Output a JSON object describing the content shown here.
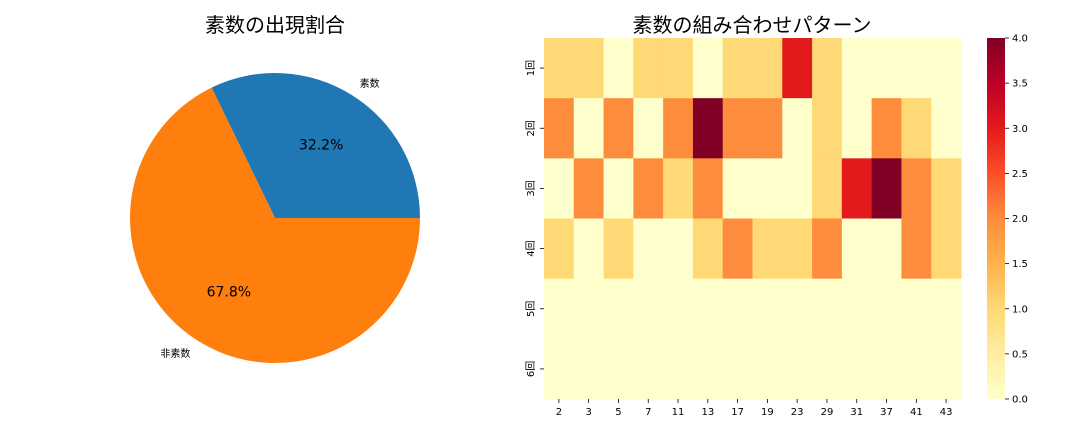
{
  "chart_data": [
    {
      "type": "pie",
      "title": "素数の出現割合",
      "labels": [
        "素数",
        "非素数"
      ],
      "values": [
        32.2,
        67.8
      ],
      "percent_labels": [
        "32.2%",
        "67.8%"
      ],
      "colors": [
        "#1f77b4",
        "#ff7f0e"
      ],
      "start_angle_deg": 0,
      "direction": "counterclockwise"
    },
    {
      "type": "heatmap",
      "title": "素数の組み合わせパターン",
      "x_categories": [
        "2",
        "3",
        "5",
        "7",
        "11",
        "13",
        "17",
        "19",
        "23",
        "29",
        "31",
        "37",
        "41",
        "43"
      ],
      "y_categories": [
        "1回",
        "2回",
        "3回",
        "4回",
        "5回",
        "6回"
      ],
      "values": [
        [
          1,
          1,
          0,
          1,
          1,
          0,
          1,
          1,
          3,
          1,
          0,
          0,
          0,
          0
        ],
        [
          2,
          0,
          2,
          0,
          2,
          4,
          2,
          2,
          0,
          1,
          0,
          2,
          1,
          0
        ],
        [
          0,
          2,
          0,
          2,
          1,
          2,
          0,
          0,
          0,
          1,
          3,
          4,
          2,
          1
        ],
        [
          1,
          0,
          1,
          0,
          0,
          1,
          2,
          1,
          1,
          2,
          0,
          0,
          2,
          1
        ],
        [
          0,
          0,
          0,
          0,
          0,
          0,
          0,
          0,
          0,
          0,
          0,
          0,
          0,
          0
        ],
        [
          0,
          0,
          0,
          0,
          0,
          0,
          0,
          0,
          0,
          0,
          0,
          0,
          0,
          0
        ]
      ],
      "colormap": "YlOrRd",
      "vmin": 0,
      "vmax": 4,
      "colorbar_ticks": [
        "0.0",
        "0.5",
        "1.0",
        "1.5",
        "2.0",
        "2.5",
        "3.0",
        "3.5",
        "4.0"
      ]
    }
  ]
}
